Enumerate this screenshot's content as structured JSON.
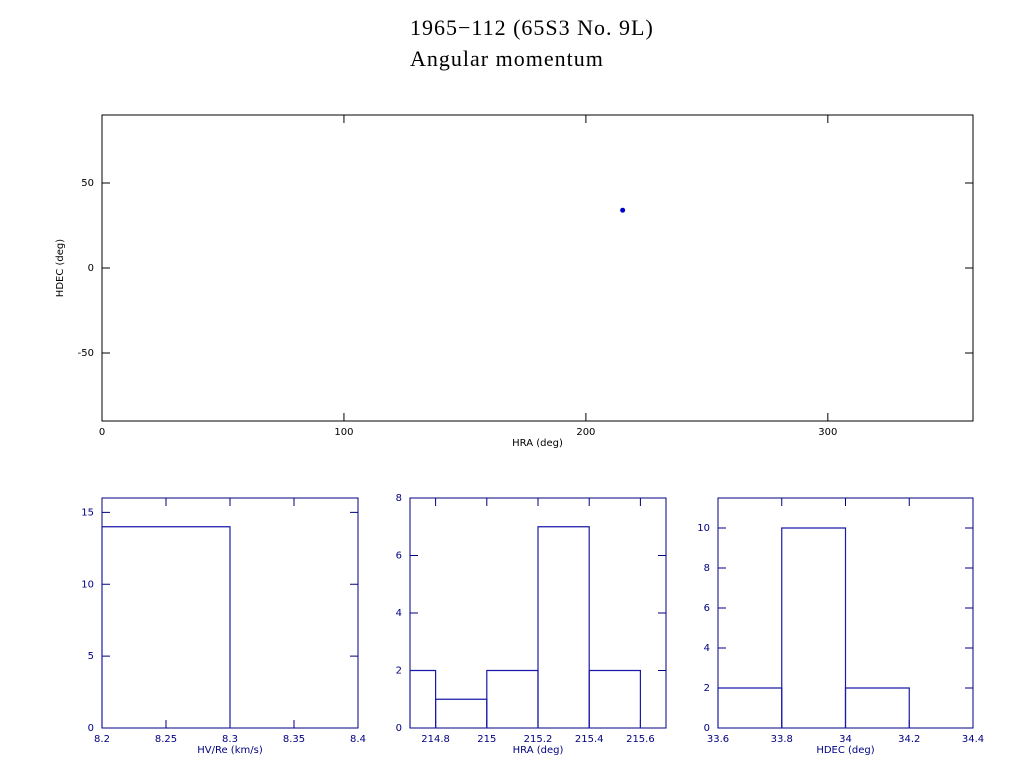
{
  "chart_data": [
    {
      "type": "scatter",
      "title": "1965−112 (65S3 No. 9L)",
      "subtitle": "Angular momentum",
      "x_label": "HRA (deg)",
      "y_label": "HDEC (deg)",
      "x": [
        215.2
      ],
      "y": [
        34
      ],
      "xlim": [
        0,
        360
      ],
      "ylim": [
        -90,
        90
      ],
      "xticks": [
        0,
        100,
        200,
        300
      ],
      "yticks": [
        -50,
        0,
        50
      ],
      "color": "#0000cc",
      "axis_color": "#000000"
    },
    {
      "type": "histogram",
      "x_label": "HV/Re (km/s)",
      "bins": [
        8.2,
        8.3
      ],
      "counts": [
        14
      ],
      "xlim": [
        8.2,
        8.4
      ],
      "ylim": [
        0,
        16
      ],
      "xticks": [
        8.2,
        8.25,
        8.3,
        8.35,
        8.4
      ],
      "yticks": [
        0,
        5,
        10,
        15
      ],
      "color": "#1a1aa8",
      "axis_color": "#000080"
    },
    {
      "type": "histogram",
      "x_label": "HRA (deg)",
      "bins": [
        214.7,
        214.8,
        215,
        215.2,
        215.4,
        215.6
      ],
      "counts": [
        2,
        1,
        2,
        7,
        2
      ],
      "xlim": [
        214.7,
        215.7
      ],
      "ylim": [
        0,
        8
      ],
      "xticks": [
        214.8,
        215,
        215.2,
        215.4,
        215.6
      ],
      "yticks": [
        0,
        2,
        4,
        6,
        8
      ],
      "color": "#1a1aa8",
      "axis_color": "#000080"
    },
    {
      "type": "histogram",
      "x_label": "HDEC (deg)",
      "bins": [
        33.6,
        33.8,
        34,
        34.2
      ],
      "counts": [
        2,
        10,
        2
      ],
      "xlim": [
        33.6,
        34.4
      ],
      "ylim": [
        0,
        11.5
      ],
      "xticks": [
        33.6,
        33.8,
        34,
        34.2,
        34.4
      ],
      "yticks": [
        0,
        2,
        4,
        6,
        8,
        10
      ],
      "color": "#1a1aa8",
      "axis_color": "#000080"
    }
  ]
}
